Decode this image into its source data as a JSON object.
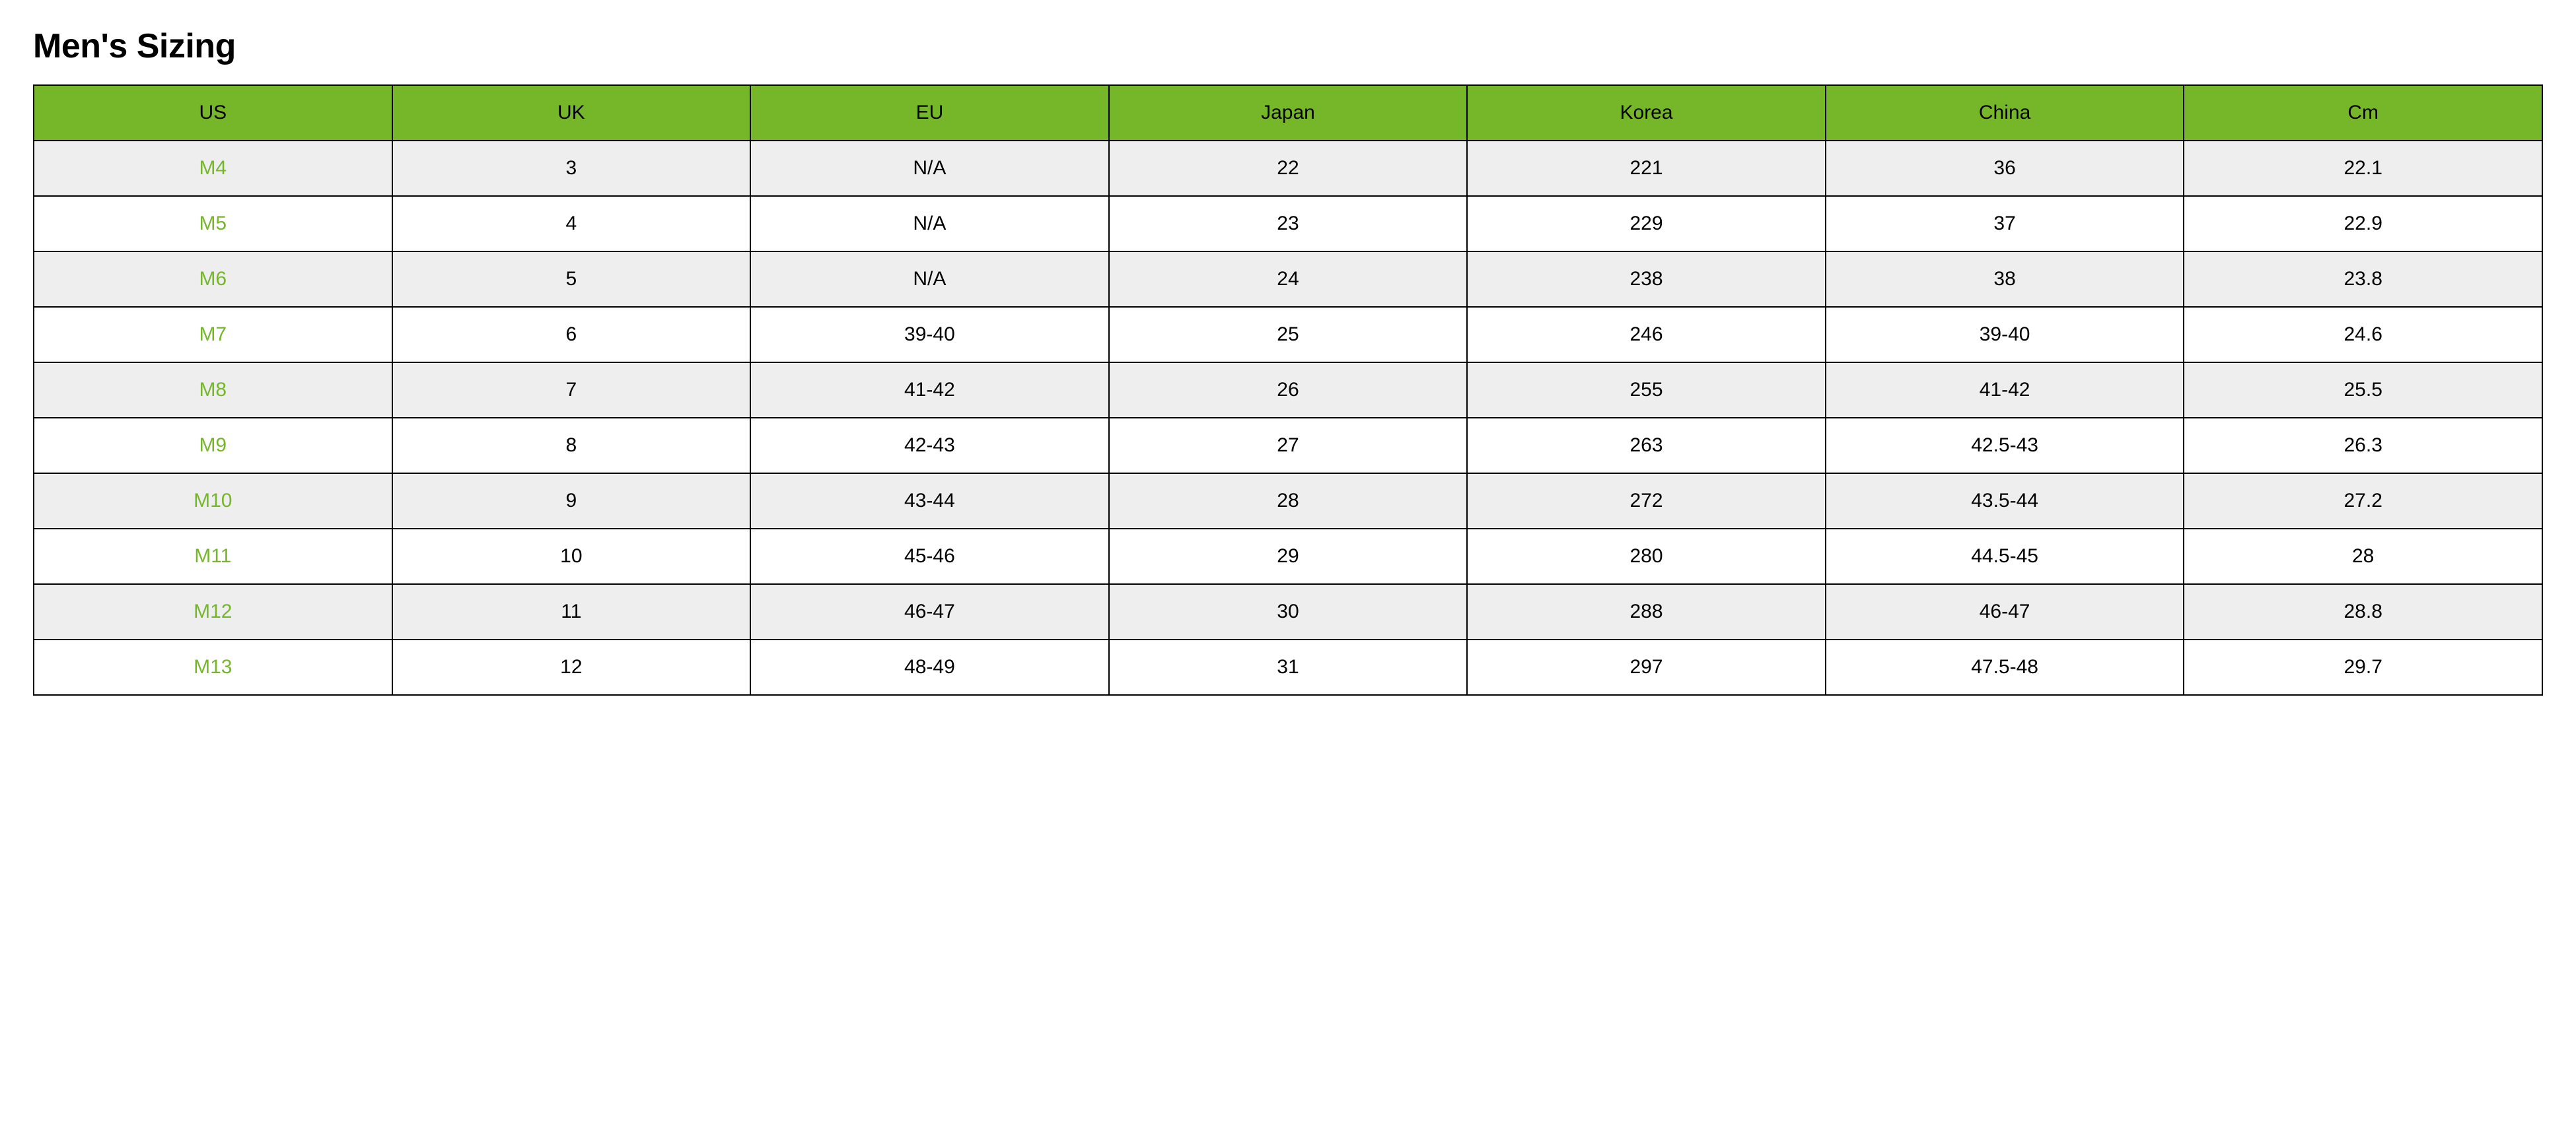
{
  "title": "Men's Sizing",
  "table": {
    "type": "table",
    "header_bg": "#76b72a",
    "header_text_color": "#000000",
    "row_alt_bg": "#eeeeee",
    "row_bg": "#ffffff",
    "us_text_color": "#76b72a",
    "cell_text_color": "#000000",
    "border_color": "#000000",
    "title_fontsize": 52,
    "cell_fontsize": 30,
    "columns": [
      "US",
      "UK",
      "EU",
      "Japan",
      "Korea",
      "China",
      "Cm"
    ],
    "rows": [
      [
        "M4",
        "3",
        "N/A",
        "22",
        "221",
        "36",
        "22.1"
      ],
      [
        "M5",
        "4",
        "N/A",
        "23",
        "229",
        "37",
        "22.9"
      ],
      [
        "M6",
        "5",
        "N/A",
        "24",
        "238",
        "38",
        "23.8"
      ],
      [
        "M7",
        "6",
        "39-40",
        "25",
        "246",
        "39-40",
        "24.6"
      ],
      [
        "M8",
        "7",
        "41-42",
        "26",
        "255",
        "41-42",
        "25.5"
      ],
      [
        "M9",
        "8",
        "42-43",
        "27",
        "263",
        "42.5-43",
        "26.3"
      ],
      [
        "M10",
        "9",
        "43-44",
        "28",
        "272",
        "43.5-44",
        "27.2"
      ],
      [
        "M11",
        "10",
        "45-46",
        "29",
        "280",
        "44.5-45",
        "28"
      ],
      [
        "M12",
        "11",
        "46-47",
        "30",
        "288",
        "46-47",
        "28.8"
      ],
      [
        "M13",
        "12",
        "48-49",
        "31",
        "297",
        "47.5-48",
        "29.7"
      ]
    ]
  }
}
